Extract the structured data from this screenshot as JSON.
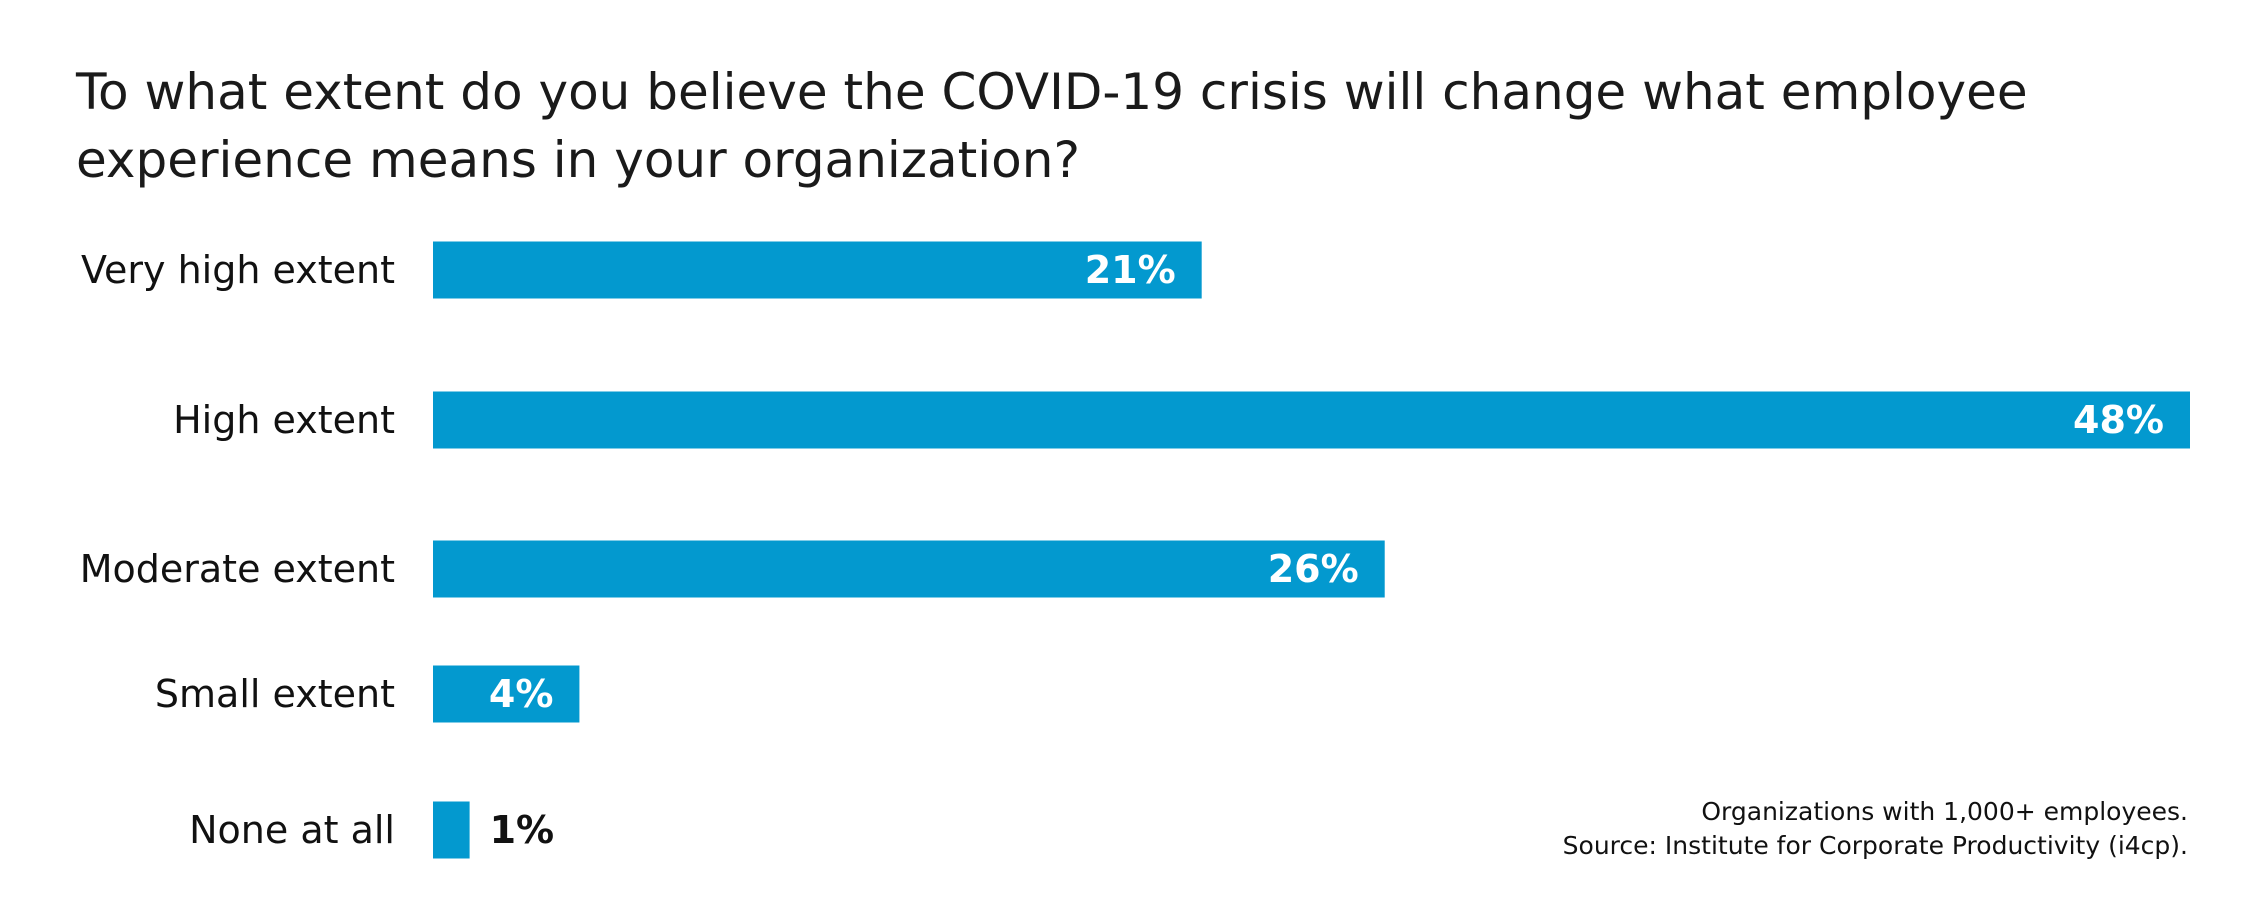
{
  "chart_data": {
    "type": "bar",
    "orientation": "horizontal",
    "title": "To what extent do you believe the COVID-19 crisis will change what employee experience means in your organization?",
    "categories": [
      "Very high extent",
      "High extent",
      "Moderate extent",
      "Small extent",
      "None at all"
    ],
    "values": [
      21,
      48,
      26,
      4,
      1
    ],
    "value_labels": [
      "21%",
      "48%",
      "26%",
      "4%",
      "1%"
    ],
    "unit": "%",
    "xlim": [
      0,
      48
    ],
    "grid": false,
    "legend": false,
    "bar_color": "#0399cf",
    "label_color_inside": "#ffffff",
    "label_color_outside": "#111111"
  },
  "footnote": {
    "line1": "Organizations with 1,000+ employees.",
    "line2": "Source: Institute for Corporate Productivity (i4cp)."
  }
}
